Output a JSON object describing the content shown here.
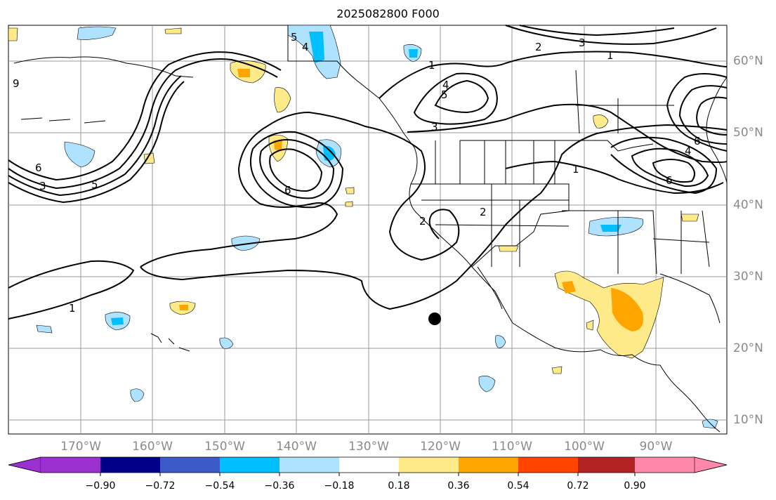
{
  "title": "2025082800 F000",
  "lon_labels": [
    "170°W",
    "160°W",
    "150°W",
    "140°W",
    "130°W",
    "120°W",
    "110°W",
    "100°W",
    "90°W"
  ],
  "lat_labels": [
    "60°N",
    "50°N",
    "40°N",
    "30°N",
    "20°N",
    "10°N"
  ],
  "colorbar": {
    "colors": [
      "#9b30d0",
      "#00008b",
      "#3a5bc8",
      "#00bfff",
      "#aee2ff",
      "#ffffff",
      "#ffea8a",
      "#ffa500",
      "#ff4500",
      "#b22222",
      "#ff88aa"
    ],
    "ticks": [
      "−0.90",
      "−0.72",
      "−0.54",
      "−0.36",
      "−0.18",
      "0.18",
      "0.36",
      "0.54",
      "0.72",
      "0.90"
    ]
  },
  "contour_labels": [
    "1",
    "1",
    "1",
    "1",
    "2",
    "2",
    "2",
    "3",
    "3",
    "3",
    "4",
    "4",
    "4",
    "5",
    "5",
    "5",
    "6",
    "6",
    "6",
    "6",
    "9"
  ],
  "marker": {
    "label": "point-marker"
  }
}
